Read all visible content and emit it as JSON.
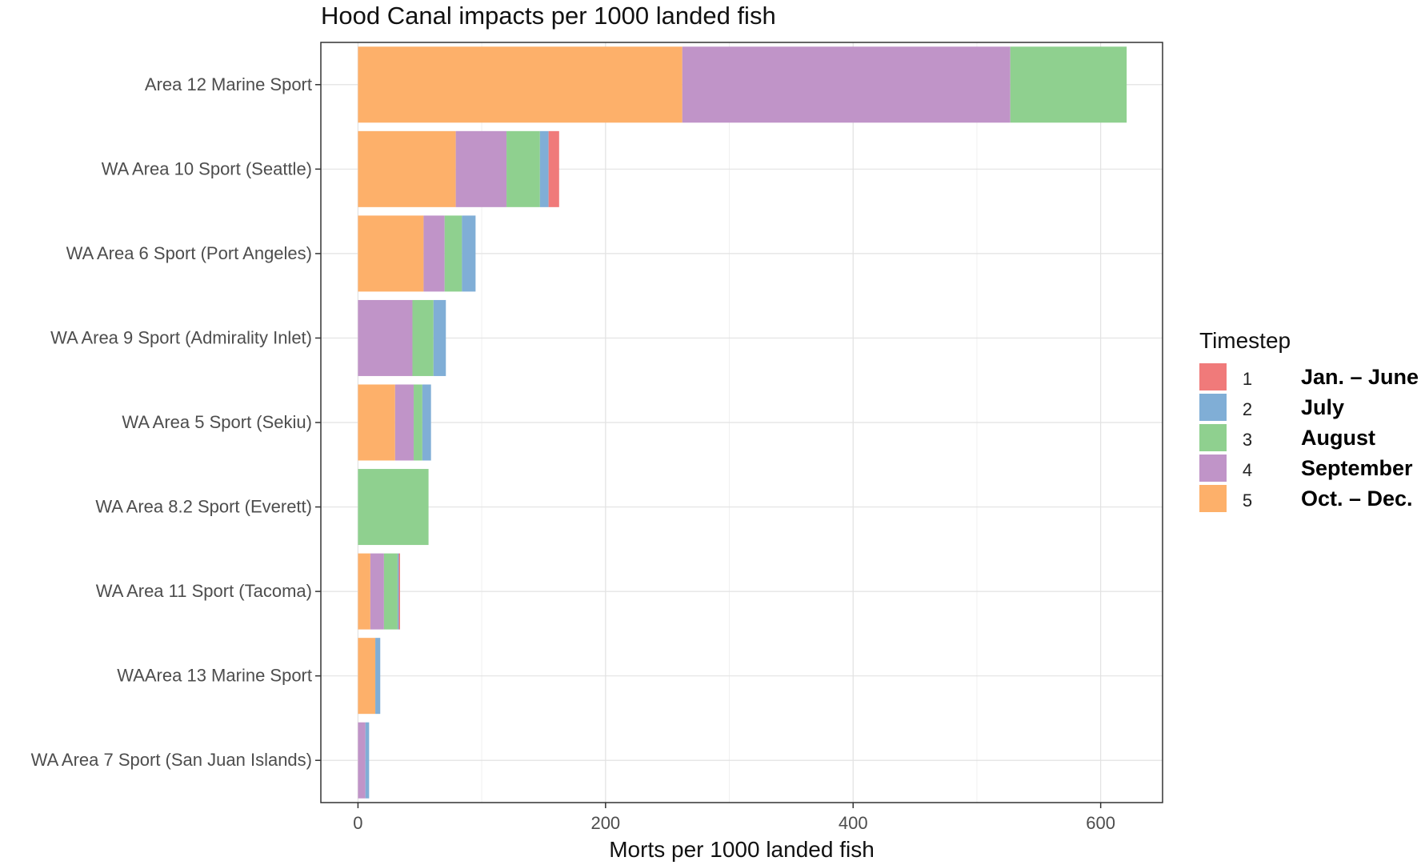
{
  "chart_data": {
    "type": "bar",
    "orientation": "horizontal",
    "stacked": true,
    "title": "Hood Canal impacts per 1000 landed fish",
    "xlabel": "Morts per 1000 landed fish",
    "ylabel": "",
    "xlim": [
      -30,
      650
    ],
    "xticks": [
      "0",
      "200",
      "400",
      "600"
    ],
    "grid": true,
    "legend_position": "right",
    "categories": [
      "Area 12 Marine Sport",
      "WA Area 10 Sport (Seattle)",
      "WA Area 6 Sport (Port Angeles)",
      "WA Area 9 Sport (Admirality Inlet)",
      "WA Area 5 Sport (Sekiu)",
      "WA Area 8.2 Sport (Everett)",
      "WA Area 11 Sport (Tacoma)",
      "WAArea 13 Marine Sport",
      "WA Area 7 Sport (San Juan Islands)"
    ],
    "stack_order": [
      "5",
      "4",
      "3",
      "2",
      "1"
    ],
    "series": [
      {
        "name": "1",
        "color": "#F07A7A",
        "values": [
          0,
          8.5,
          0,
          0,
          0,
          0,
          1,
          0,
          0
        ]
      },
      {
        "name": "2",
        "color": "#80AED6",
        "values": [
          0,
          7,
          11,
          10,
          7,
          0,
          1,
          4,
          3
        ]
      },
      {
        "name": "3",
        "color": "#8FD08F",
        "values": [
          94,
          27,
          14,
          17,
          7,
          57,
          11,
          0,
          0
        ]
      },
      {
        "name": "4",
        "color": "#C094C8",
        "values": [
          265,
          41,
          17,
          44,
          15,
          0,
          11,
          0,
          6
        ]
      },
      {
        "name": "5",
        "color": "#FDB06A",
        "values": [
          262,
          79,
          53,
          0,
          30,
          0,
          10,
          14,
          0
        ]
      }
    ],
    "legend": {
      "title": "Timestep",
      "items": [
        {
          "key": "1",
          "label": "Jan. – June",
          "color": "#F07A7A"
        },
        {
          "key": "2",
          "label": "July",
          "color": "#80AED6"
        },
        {
          "key": "3",
          "label": "August",
          "color": "#8FD08F"
        },
        {
          "key": "4",
          "label": "September",
          "color": "#C094C8"
        },
        {
          "key": "5",
          "label": "Oct. – Dec.",
          "color": "#FDB06A"
        }
      ]
    }
  }
}
